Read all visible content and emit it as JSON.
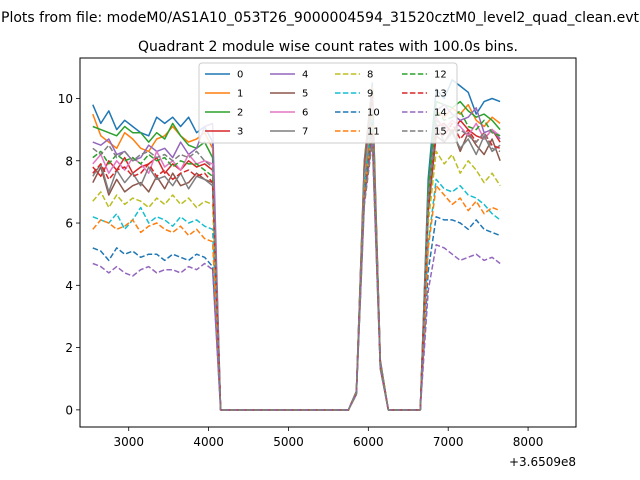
{
  "suptitle": "Plots from file: modeM0/AS1A10_053T26_9000004594_31520cztM0_level2_quad_clean.evt",
  "chart_data": {
    "type": "line",
    "title": "Quadrant 2 module wise count rates with 100.0s bins.",
    "xlabel": "",
    "ylabel": "",
    "x_offset_label": "+3.6509e8",
    "xlim": [
      2390,
      8600
    ],
    "ylim": [
      -0.55,
      11.3
    ],
    "xticks": [
      3000,
      4000,
      5000,
      6000,
      7000,
      8000
    ],
    "yticks": [
      0,
      2,
      4,
      6,
      8,
      10
    ],
    "grid": false,
    "legend": {
      "placement": "top-center",
      "ncol": 4
    },
    "x": [
      2550,
      2650,
      2750,
      2850,
      2950,
      3050,
      3150,
      3250,
      3350,
      3450,
      3550,
      3650,
      3750,
      3850,
      3950,
      4050,
      4150,
      4250,
      4350,
      4450,
      4550,
      4650,
      4750,
      4850,
      4950,
      5050,
      5150,
      5250,
      5350,
      5450,
      5550,
      5650,
      5750,
      5850,
      5950,
      6050,
      6150,
      6250,
      6350,
      6450,
      6550,
      6650,
      6750,
      6850,
      6950,
      7050,
      7150,
      7250,
      7350,
      7450,
      7550,
      7650,
      7750,
      7850,
      7950,
      8050,
      8150,
      8250,
      8350
    ],
    "series": [
      {
        "name": "0",
        "color": "#1f77b4",
        "dash": "solid",
        "seg1": [
          9.8,
          9.2,
          9.6,
          9.0,
          9.3,
          9.1,
          8.9,
          8.8,
          9.4,
          9.2,
          9.4,
          9.1,
          9.4,
          8.9,
          9.1,
          8.6
        ],
        "seg2": [
          10.3,
          10.0,
          10.6,
          10.4,
          10.2,
          9.5,
          9.9,
          10.0,
          9.9
        ]
      },
      {
        "name": "1",
        "color": "#ff7f0e",
        "dash": "solid",
        "seg1": [
          9.5,
          8.8,
          8.6,
          8.4,
          8.9,
          8.7,
          8.4,
          8.3,
          8.7,
          8.8,
          9.1,
          8.8,
          8.6,
          8.7,
          8.9,
          8.4
        ],
        "seg2": [
          9.6,
          9.4,
          9.7,
          9.5,
          9.8,
          9.3,
          9.1,
          9.4,
          9.2
        ]
      },
      {
        "name": "2",
        "color": "#2ca02c",
        "dash": "solid",
        "seg1": [
          9.1,
          9.0,
          8.9,
          8.8,
          9.1,
          8.9,
          8.9,
          8.6,
          8.9,
          8.7,
          9.2,
          8.8,
          8.5,
          8.4,
          8.6,
          8.1
        ],
        "seg2": [
          9.9,
          9.8,
          9.7,
          9.9,
          9.6,
          9.4,
          9.5,
          9.3,
          9.0
        ]
      },
      {
        "name": "3",
        "color": "#d62728",
        "dash": "solid",
        "seg1": [
          7.8,
          7.5,
          8.0,
          7.7,
          8.1,
          7.6,
          7.8,
          7.9,
          8.1,
          7.6,
          7.9,
          7.7,
          8.0,
          7.8,
          7.9,
          7.7
        ],
        "seg2": [
          9.1,
          9.2,
          8.9,
          9.3,
          9.0,
          8.8,
          8.7,
          9.0,
          8.6
        ]
      },
      {
        "name": "4",
        "color": "#9467bd",
        "dash": "solid",
        "seg1": [
          8.6,
          8.5,
          8.7,
          8.2,
          8.3,
          8.0,
          8.1,
          8.5,
          8.3,
          8.4,
          8.1,
          8.6,
          8.2,
          8.4,
          9.1,
          9.2
        ],
        "seg2": [
          9.6,
          9.8,
          9.5,
          9.3,
          9.4,
          9.7,
          8.9,
          9.0,
          8.7
        ]
      },
      {
        "name": "5",
        "color": "#8c564b",
        "dash": "solid",
        "seg1": [
          7.3,
          7.8,
          6.9,
          7.4,
          7.0,
          7.2,
          7.3,
          7.0,
          7.5,
          7.1,
          7.6,
          7.2,
          7.3,
          7.6,
          7.4,
          7.3
        ],
        "seg2": [
          8.8,
          8.6,
          9.0,
          8.3,
          8.9,
          8.5,
          8.2,
          8.7,
          8.0
        ]
      },
      {
        "name": "6",
        "color": "#e377c2",
        "dash": "solid",
        "seg1": [
          7.9,
          8.2,
          7.6,
          8.0,
          7.7,
          8.1,
          7.9,
          7.6,
          8.3,
          7.8,
          8.0,
          7.7,
          8.2,
          7.9,
          8.0,
          7.9
        ],
        "seg2": [
          9.4,
          9.0,
          9.3,
          9.1,
          8.8,
          9.2,
          8.7,
          9.0,
          8.8
        ]
      },
      {
        "name": "7",
        "color": "#7f7f7f",
        "dash": "solid",
        "seg1": [
          7.5,
          7.9,
          7.0,
          7.7,
          7.3,
          7.6,
          7.2,
          7.8,
          7.4,
          7.5,
          7.2,
          7.6,
          7.1,
          7.5,
          7.4,
          7.2
        ],
        "seg2": [
          9.2,
          8.6,
          8.9,
          8.4,
          8.7,
          8.2,
          8.8,
          8.3,
          8.5
        ]
      },
      {
        "name": "8",
        "color": "#bcbd22",
        "dash": "dashed",
        "seg1": [
          6.7,
          7.0,
          6.5,
          6.9,
          6.6,
          6.8,
          6.7,
          6.5,
          6.8,
          6.6,
          6.9,
          6.6,
          6.8,
          6.5,
          6.7,
          6.6
        ],
        "seg2": [
          8.3,
          7.9,
          8.2,
          7.6,
          8.0,
          7.7,
          7.3,
          7.6,
          7.2
        ]
      },
      {
        "name": "9",
        "color": "#17becf",
        "dash": "dashed",
        "seg1": [
          6.2,
          6.1,
          6.0,
          6.3,
          5.8,
          6.1,
          6.5,
          6.0,
          6.2,
          6.1,
          5.9,
          6.2,
          6.0,
          6.1,
          5.9,
          5.8
        ],
        "seg2": [
          7.4,
          7.1,
          7.0,
          7.2,
          6.9,
          6.8,
          6.6,
          6.3,
          6.1
        ]
      },
      {
        "name": "10",
        "color": "#1f77b4",
        "dash": "dashed",
        "seg1": [
          5.2,
          5.1,
          4.8,
          5.2,
          5.0,
          5.1,
          4.9,
          5.0,
          5.0,
          4.8,
          5.0,
          4.9,
          4.8,
          5.0,
          4.9,
          4.6
        ],
        "seg2": [
          6.2,
          6.1,
          6.1,
          6.0,
          5.8,
          6.1,
          5.8,
          5.7,
          5.6
        ]
      },
      {
        "name": "11",
        "color": "#ff7f0e",
        "dash": "dashed",
        "seg1": [
          5.8,
          6.1,
          6.0,
          5.8,
          5.9,
          6.1,
          5.7,
          5.9,
          6.0,
          5.8,
          5.7,
          5.9,
          5.6,
          5.8,
          5.5,
          5.4
        ],
        "seg2": [
          7.2,
          6.9,
          6.6,
          6.8,
          6.4,
          6.7,
          6.3,
          6.5,
          6.4
        ]
      },
      {
        "name": "12",
        "color": "#2ca02c",
        "dash": "dashed",
        "seg1": [
          8.1,
          8.3,
          7.9,
          8.2,
          8.0,
          8.1,
          7.9,
          8.2,
          8.0,
          8.1,
          7.8,
          8.0,
          7.9,
          7.9,
          7.7,
          7.5
        ],
        "seg2": [
          9.6,
          9.3,
          9.4,
          9.6,
          9.1,
          9.0,
          9.3,
          8.9,
          8.8
        ]
      },
      {
        "name": "13",
        "color": "#d62728",
        "dash": "dashed",
        "seg1": [
          7.6,
          7.9,
          7.4,
          7.7,
          7.8,
          7.5,
          7.6,
          7.9,
          7.5,
          7.7,
          7.4,
          7.6,
          7.7,
          7.5,
          7.6,
          7.3
        ],
        "seg2": [
          9.0,
          8.8,
          9.2,
          8.7,
          9.0,
          8.6,
          8.9,
          8.5,
          8.4
        ]
      },
      {
        "name": "14",
        "color": "#9467bd",
        "dash": "dashed",
        "seg1": [
          4.7,
          4.6,
          4.4,
          4.6,
          4.4,
          4.3,
          4.5,
          4.6,
          4.4,
          4.5,
          4.5,
          4.4,
          4.6,
          4.5,
          4.7,
          4.5
        ],
        "seg2": [
          5.3,
          5.2,
          5.0,
          4.8,
          4.9,
          5.0,
          4.8,
          4.9,
          4.7
        ]
      },
      {
        "name": "15",
        "color": "#7f7f7f",
        "dash": "dashed",
        "seg1": [
          8.4,
          8.2,
          8.5,
          8.1,
          8.3,
          8.0,
          8.2,
          8.3,
          8.1,
          8.2,
          8.0,
          8.2,
          8.1,
          8.3,
          8.0,
          7.8
        ],
        "seg2": [
          9.3,
          9.1,
          8.9,
          9.0,
          8.8,
          8.6,
          8.9,
          8.4,
          8.3
        ]
      }
    ],
    "spike": {
      "x": [
        6350,
        6450,
        6550,
        6650
      ],
      "values_base": [
        0.6,
        8.0,
        10.5,
        1.6
      ]
    }
  }
}
